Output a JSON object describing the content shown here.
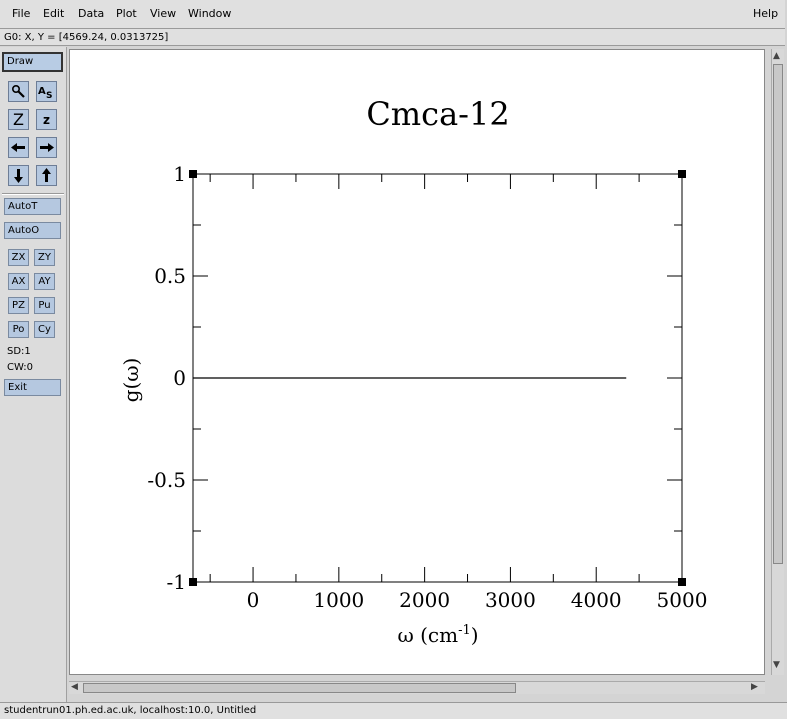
{
  "menu": {
    "file": "File",
    "edit": "Edit",
    "data": "Data",
    "plot": "Plot",
    "view": "View",
    "window": "Window",
    "help": "Help"
  },
  "status_line": "G0: X, Y = [4569.24, 0.0313725]",
  "toolbar": {
    "draw": "Draw",
    "zoom_icon": "magnifier-icon",
    "autoscale_text_icon": "text-icon",
    "z_big": "Z",
    "z_small": "z",
    "autot": "AutoT",
    "autoo": "AutoO",
    "zx": "ZX",
    "zy": "ZY",
    "ax": "AX",
    "ay": "AY",
    "pz": "PZ",
    "pu": "Pu",
    "po": "Po",
    "cy": "Cy",
    "sd": "SD:1",
    "cw": "CW:0",
    "exit": "Exit"
  },
  "footer": "studentrun01.ph.ed.ac.uk, localhost:10.0, Untitled",
  "chart_data": {
    "type": "line",
    "title": "Cmca-12",
    "xlabel": "ω (cm",
    "xlabel_sup": "-1",
    "xlabel_close": ")",
    "ylabel": "g(ω)",
    "xlim": [
      -700,
      5000
    ],
    "ylim": [
      -1,
      1
    ],
    "xticks": [
      0,
      1000,
      2000,
      3000,
      4000,
      5000
    ],
    "xtick_labels": [
      "0",
      "1000",
      "2000",
      "3000",
      "4000",
      "5000"
    ],
    "yticks": [
      -1,
      -0.5,
      0,
      0.5,
      1
    ],
    "ytick_labels": [
      "-1",
      "-0.5",
      "0",
      "0.5",
      "1"
    ],
    "series": [
      {
        "x": [
          -700,
          4350
        ],
        "y": [
          0,
          0
        ]
      }
    ]
  }
}
